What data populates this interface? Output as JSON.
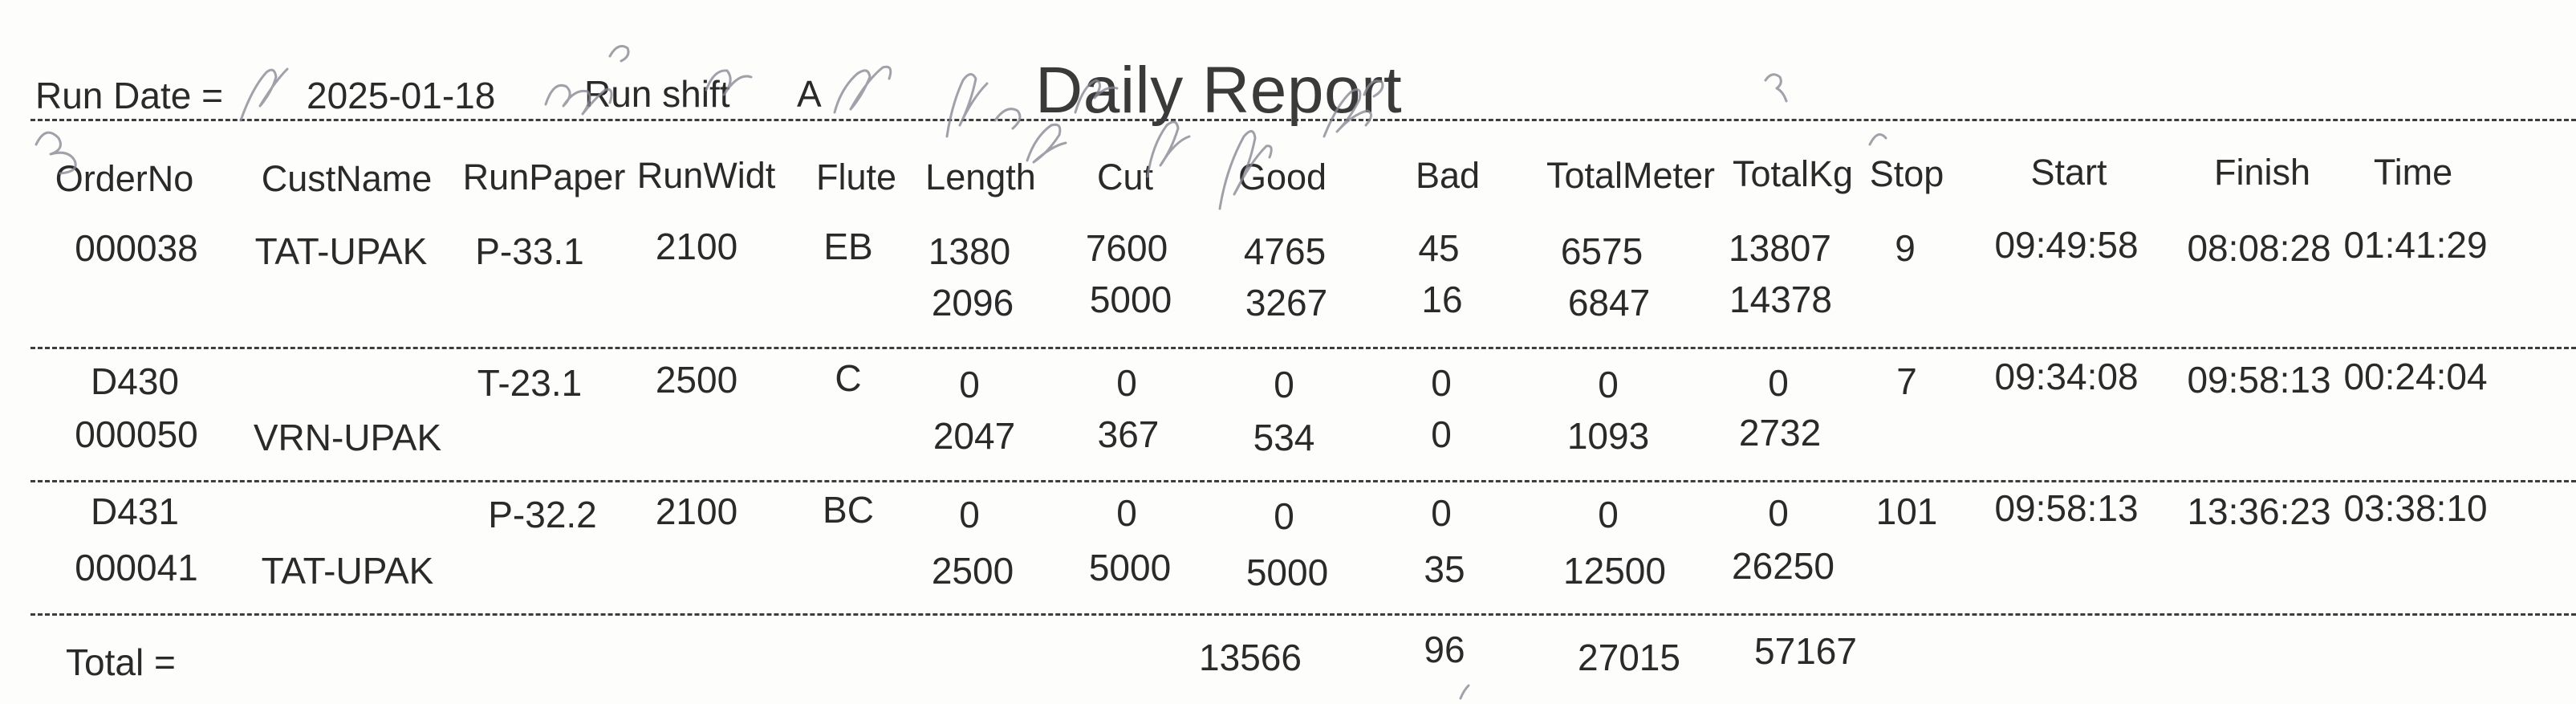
{
  "report": {
    "title": "Daily Report",
    "run_date_label": "Run Date =",
    "run_date": "2025-01-18",
    "run_shift_label": "Run shift",
    "run_shift": "A"
  },
  "columns": [
    "OrderNo",
    "CustName",
    "RunPaper",
    "RunWidt",
    "Flute",
    "Length",
    "Cut",
    "Good",
    "Bad",
    "TotalMeter",
    "TotalKg",
    "Stop",
    "Start",
    "Finish",
    "Time"
  ],
  "groups": [
    {
      "main": {
        "order": "000038",
        "cust": "TAT-UPAK",
        "paper": "P-33.1",
        "width": "2100",
        "flute": "EB",
        "length": "1380",
        "cut": "7600",
        "good": "4765",
        "bad": "45",
        "meter": "6575",
        "kg": "13807",
        "stop": "9",
        "start": "09:49:58",
        "finish": "08:08:28",
        "time": "01:41:29"
      },
      "sub": {
        "order": "",
        "cust": "",
        "length": "2096",
        "cut": "5000",
        "good": "3267",
        "bad": "16",
        "meter": "6847",
        "kg": "14378"
      }
    },
    {
      "main": {
        "order": "D430",
        "cust": "",
        "paper": "T-23.1",
        "width": "2500",
        "flute": "C",
        "length": "0",
        "cut": "0",
        "good": "0",
        "bad": "0",
        "meter": "0",
        "kg": "0",
        "stop": "7",
        "start": "09:34:08",
        "finish": "09:58:13",
        "time": "00:24:04"
      },
      "sub": {
        "order": "000050",
        "cust": "VRN-UPAK",
        "length": "2047",
        "cut": "367",
        "good": "534",
        "bad": "0",
        "meter": "1093",
        "kg": "2732"
      }
    },
    {
      "main": {
        "order": "D431",
        "cust": "",
        "paper": "P-32.2",
        "width": "2100",
        "flute": "BC",
        "length": "0",
        "cut": "0",
        "good": "0",
        "bad": "0",
        "meter": "0",
        "kg": "0",
        "stop": "101",
        "start": "09:58:13",
        "finish": "13:36:23",
        "time": "03:38:10"
      },
      "sub": {
        "order": "000041",
        "cust": "TAT-UPAK",
        "length": "2500",
        "cut": "5000",
        "good": "5000",
        "bad": "35",
        "meter": "12500",
        "kg": "26250"
      }
    }
  ],
  "totals": {
    "label": "Total =",
    "good": "13566",
    "bad": "96",
    "meter": "27015",
    "kg": "57167"
  }
}
